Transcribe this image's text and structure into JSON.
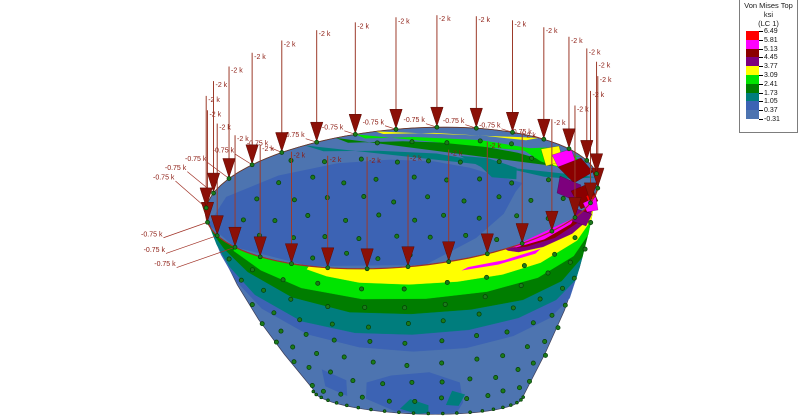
{
  "view": {
    "background": "#ffffff"
  },
  "legend": {
    "title_lines": [
      "Von Mises Top",
      "ksi",
      "(LC 1)"
    ],
    "values": [
      "6.49",
      "5.81",
      "5.13",
      "4.45",
      "3.77",
      "3.09",
      "2.41",
      "1.73",
      "1.05",
      "0.37",
      "-0.31"
    ],
    "colors": [
      "#ff0000",
      "#ff00ff",
      "#8b0000",
      "#7d007d",
      "#ffff00",
      "#00e400",
      "#007d00",
      "#007d7d",
      "#3c63b4",
      "#4d74b0"
    ]
  },
  "loads": {
    "point_load_label": "-2 k",
    "edge_load_label": "-0.75 k",
    "arrow_color": "#8b1007",
    "arrow_shaft_color": "#9c3a2a",
    "label_color": "#8b1a10"
  },
  "mesh": {
    "node_dot_color": "#1b7a1b",
    "node_dot_stroke": "#063d06",
    "edge_color": "#4a4a62"
  },
  "palette": {
    "red": "#ff0000",
    "magenta": "#ff00ff",
    "dark_red": "#8b0000",
    "purple": "#7d007d",
    "yellow": "#ffff00",
    "green": "#00e400",
    "dark_green": "#007d00",
    "teal": "#007d7d",
    "blue_mid": "#3c63b4",
    "blue_light": "#4d74b0"
  }
}
